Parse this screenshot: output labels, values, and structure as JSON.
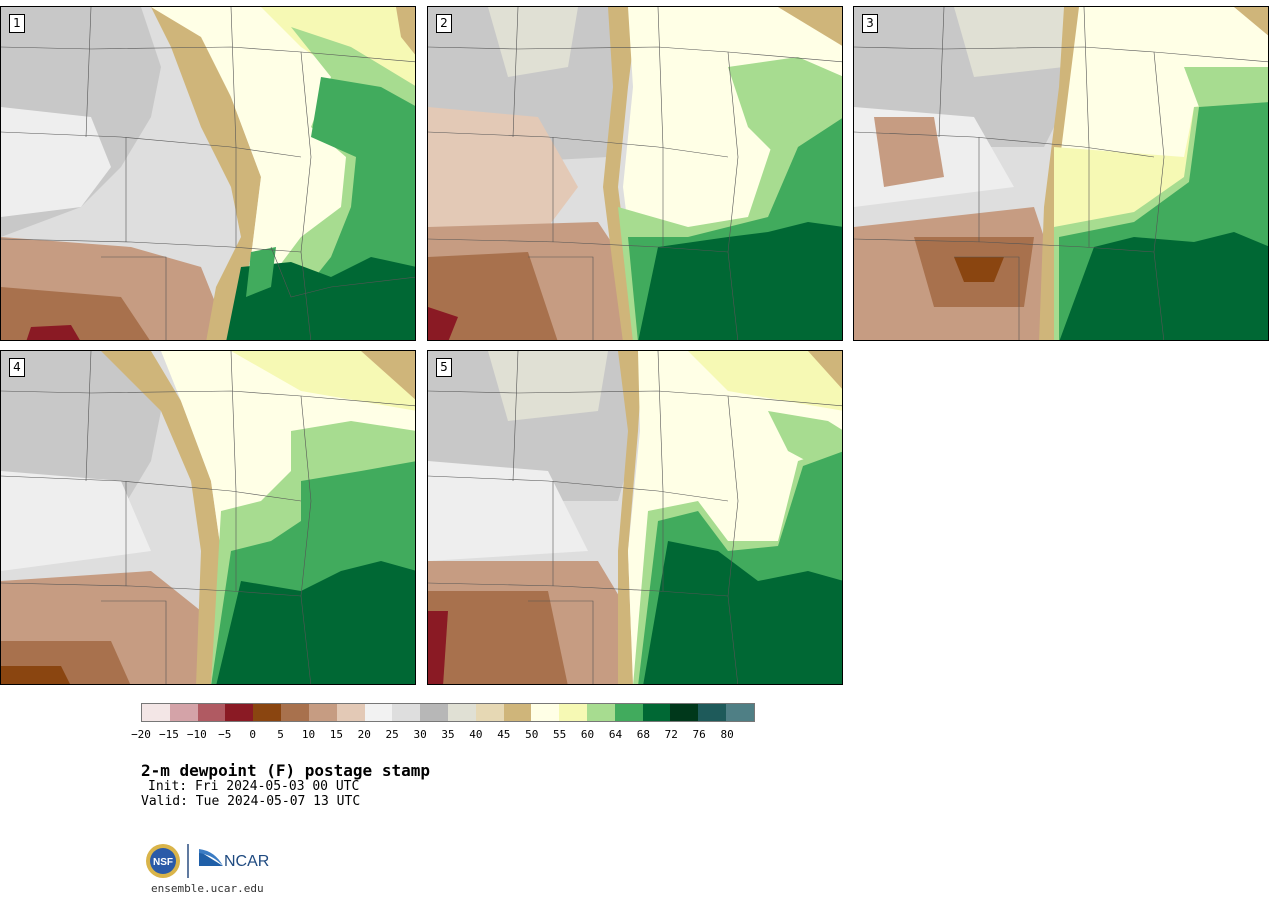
{
  "panels": [
    {
      "label": "1"
    },
    {
      "label": "2"
    },
    {
      "label": "3"
    },
    {
      "label": "4"
    },
    {
      "label": "5"
    }
  ],
  "legend": {
    "colors": [
      "#f3e6e6",
      "#d4a3a8",
      "#b05a62",
      "#8a1a24",
      "#8a4510",
      "#a8714d",
      "#c69c82",
      "#e3c9b6",
      "#f2f2f2",
      "#dedede",
      "#b7b7b7",
      "#e0e0d4",
      "#e6d8b4",
      "#cfb57a",
      "#ffffe6",
      "#f6f9b4",
      "#a7dc90",
      "#41ab5d",
      "#006834",
      "#00381b",
      "#1e5a5a",
      "#4f7f85"
    ],
    "ticks": [
      "−20",
      "−15",
      "−10",
      "−5",
      "0",
      "5",
      "10",
      "15",
      "20",
      "25",
      "30",
      "35",
      "40",
      "45",
      "50",
      "55",
      "60",
      "64",
      "68",
      "72",
      "76",
      "80"
    ]
  },
  "title": "2-m dewpoint (F) postage stamp",
  "init": "Init: Fri 2024-05-03 00 UTC",
  "valid": "Valid: Tue 2024-05-07 13 UTC",
  "logos": {
    "nsf": "NSF",
    "ncar": "NCAR"
  },
  "site": "ensemble.ucar.edu"
}
